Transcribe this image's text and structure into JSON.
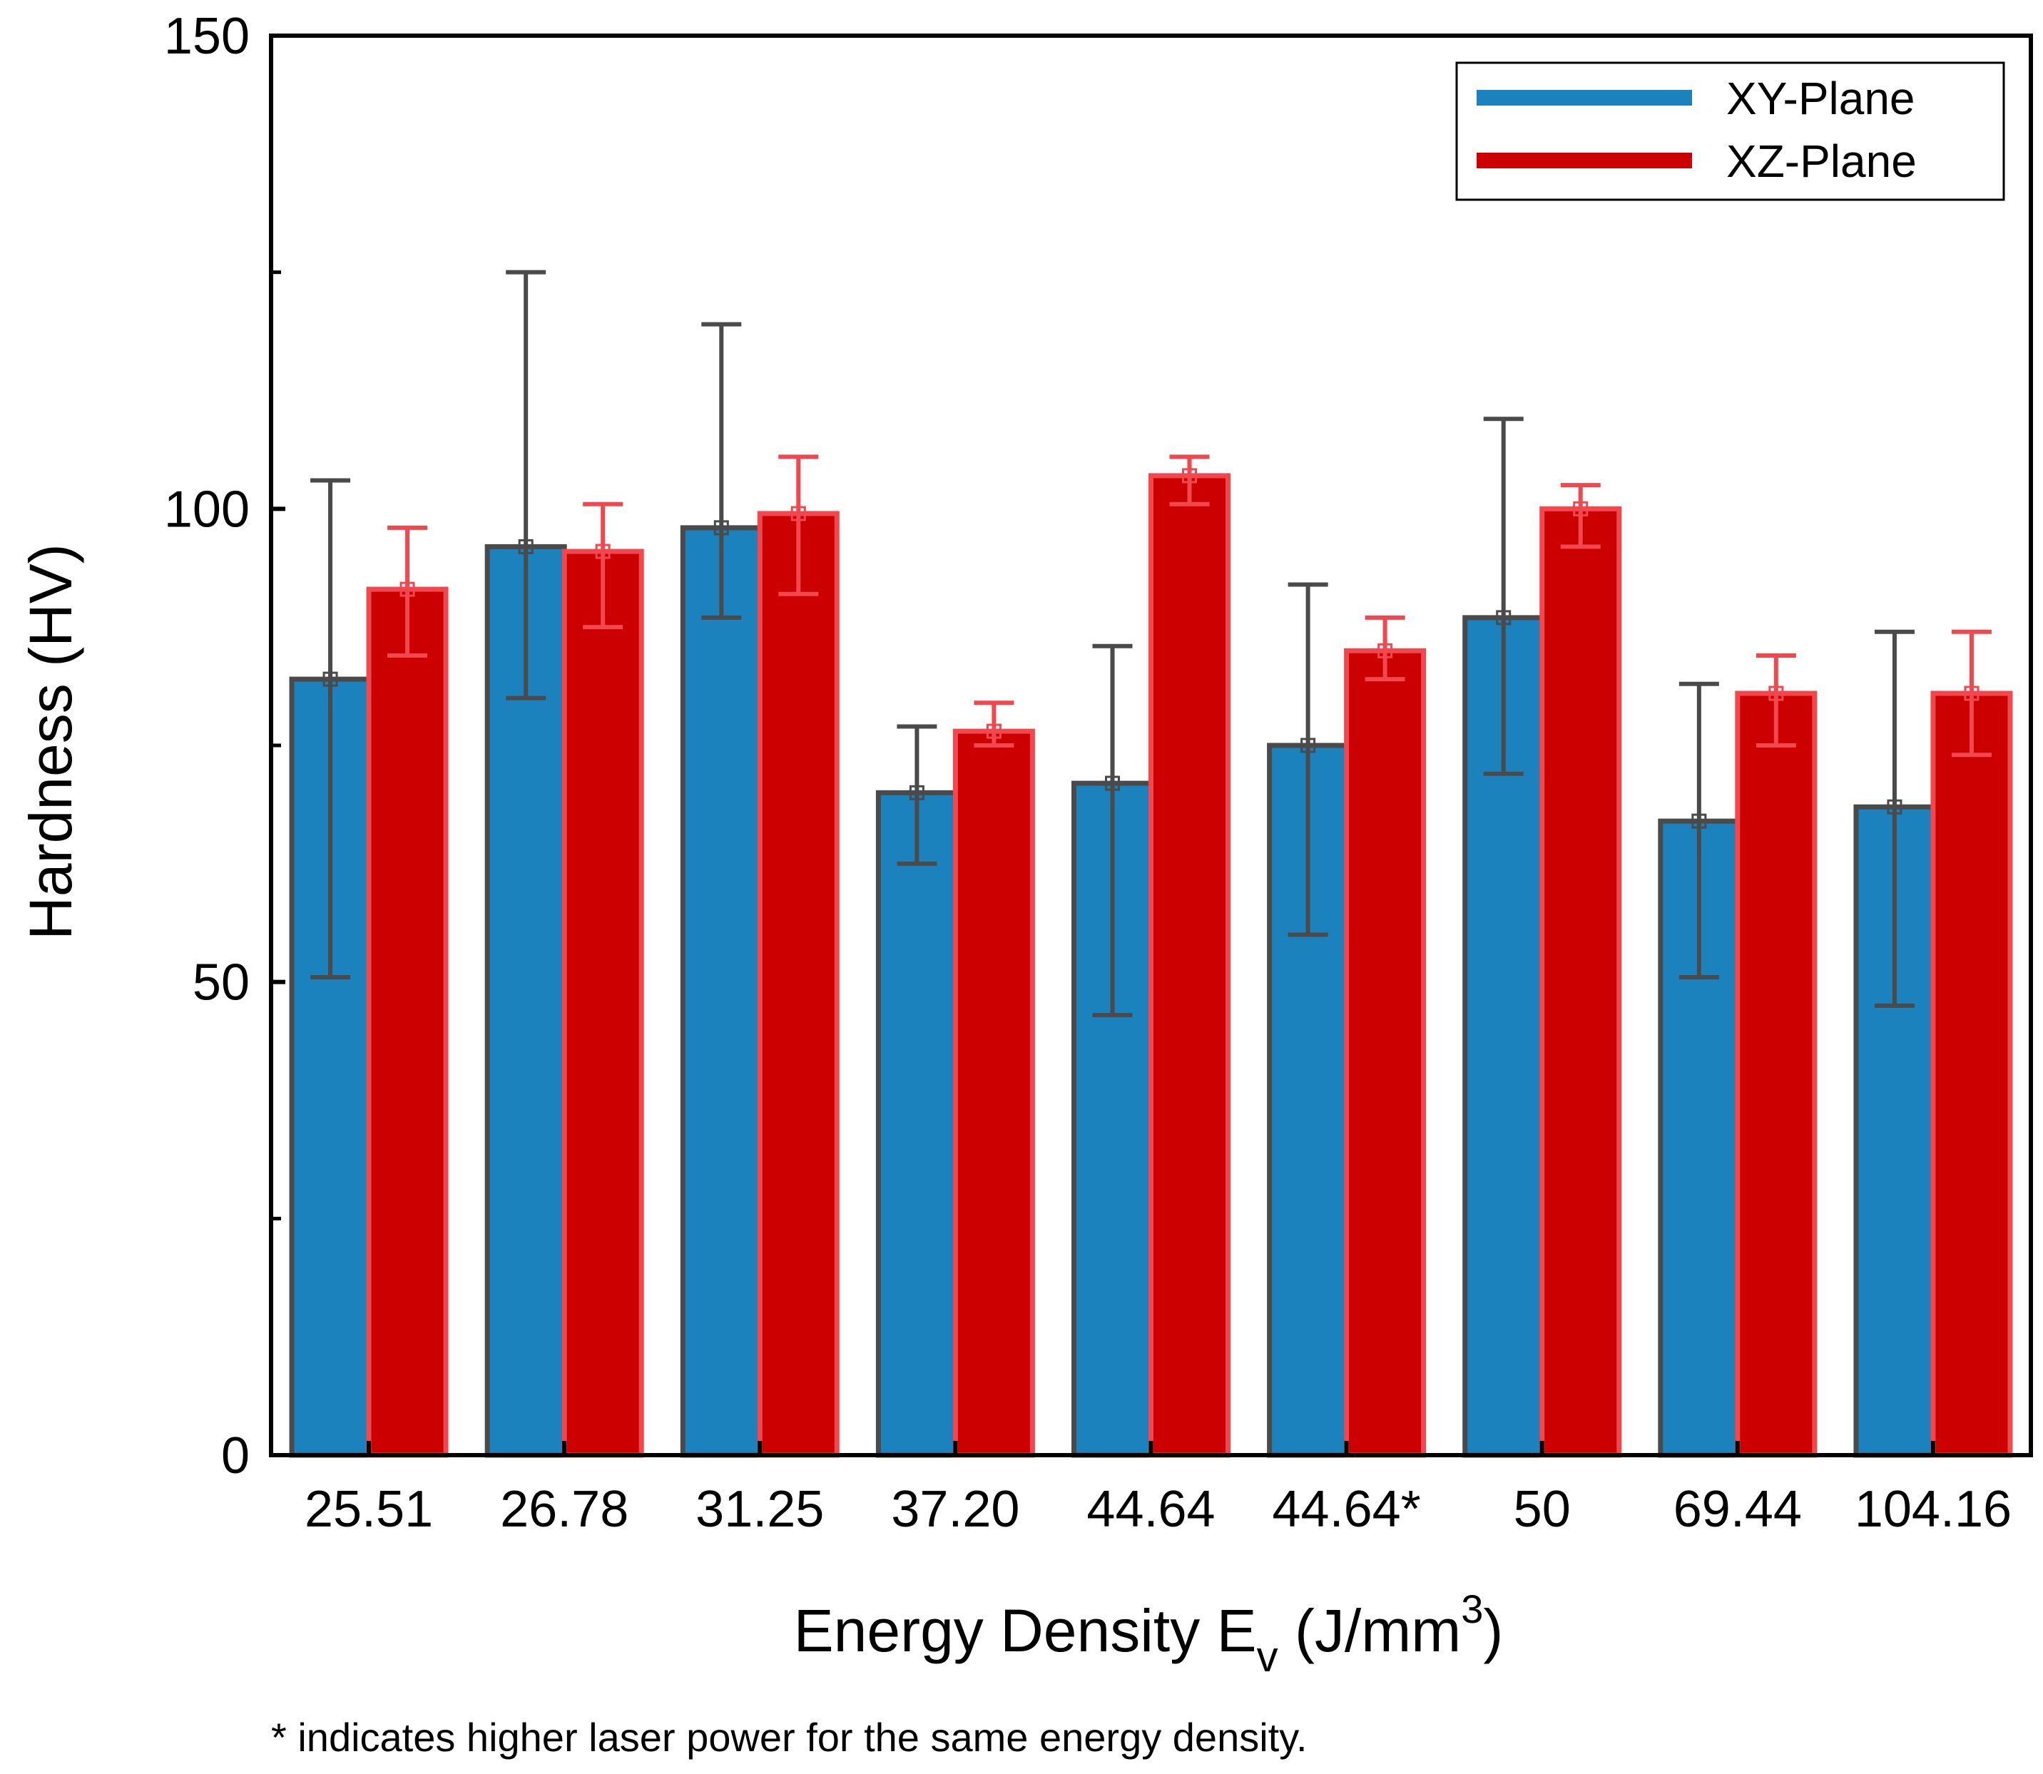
{
  "chart_data": {
    "type": "bar",
    "title": "",
    "xlabel": "Energy Density E",
    "xlabel_subscript": "v",
    "xlabel_units_prefix": " (J/mm",
    "xlabel_units_superscript": "3",
    "xlabel_units_suffix": ")",
    "ylabel": "Hardness (HV)",
    "ylim": [
      0,
      150
    ],
    "yticks": [
      0,
      50,
      100,
      150
    ],
    "yticks_minor": [
      25,
      75,
      125
    ],
    "grid": false,
    "legend_position": "top-right",
    "categories": [
      "25.51",
      "26.78",
      "31.25",
      "37.20",
      "44.64",
      "44.64*",
      "50",
      "69.44",
      "104.16"
    ],
    "series": [
      {
        "name": "XY-Plane",
        "color": "#1b82bd",
        "edge_color": "#4a4a4a",
        "values": [
          82,
          96,
          98,
          70,
          71,
          75,
          88.5,
          67,
          68.5
        ],
        "error_upper": [
          103,
          125,
          119.5,
          77,
          85.5,
          92,
          109.5,
          81.5,
          87
        ],
        "error_lower": [
          50.5,
          80,
          88.5,
          62.5,
          46.5,
          55,
          72,
          50.5,
          47.5
        ]
      },
      {
        "name": "XZ-Plane",
        "color": "#cc0000",
        "edge_color": "#f0484e",
        "values": [
          91.5,
          95.5,
          99.5,
          76.5,
          103.5,
          85,
          100,
          80.5,
          80.5
        ],
        "error_upper": [
          98,
          100.5,
          105.5,
          79.5,
          105.5,
          88.5,
          102.5,
          84.5,
          87
        ],
        "error_lower": [
          84.5,
          87.5,
          91,
          75,
          100.5,
          82,
          96,
          75,
          74
        ]
      }
    ],
    "footnote": "* indicates higher laser power for the same energy density."
  }
}
